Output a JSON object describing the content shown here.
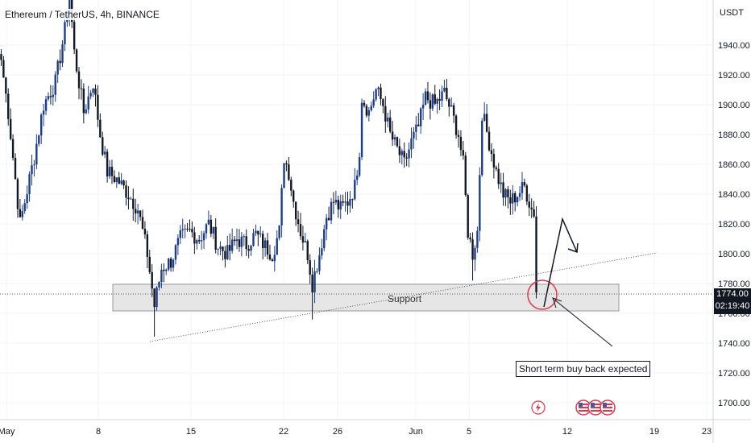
{
  "header": {
    "title": "Ethereum / TetherUS, 4h, BINANCE",
    "currency": "USDT"
  },
  "price_label": {
    "price": "1774.00",
    "countdown": "02:19:40"
  },
  "annotations": {
    "support": "Support",
    "note": "Short term buy back expected"
  },
  "chart_data": {
    "type": "candlestick",
    "title": "Ethereum / TetherUS, 4h, BINANCE",
    "ylabel": "USDT",
    "ylim": [
      1690,
      1970
    ],
    "yticks": [
      1700,
      1720,
      1740,
      1760,
      1780,
      1800,
      1820,
      1840,
      1860,
      1880,
      1900,
      1920,
      1940
    ],
    "ytick_labels": [
      "1700.00",
      "1720.00",
      "1740.00",
      "1760.00",
      "1780.00",
      "1800.00",
      "1820.00",
      "1840.00",
      "1860.00",
      "1880.00",
      "1900.00",
      "1920.00",
      "1940.00"
    ],
    "xtick_labels": [
      "May",
      "8",
      "15",
      "22",
      "26",
      "Jun",
      "5",
      "12",
      "19",
      "23"
    ],
    "current_price": 1774.0,
    "support_zone": [
      1762,
      1780
    ],
    "path_key_points": [
      {
        "i": 0,
        "v": 1930
      },
      {
        "i": 3,
        "v": 1895
      },
      {
        "i": 8,
        "v": 1820
      },
      {
        "i": 14,
        "v": 1865
      },
      {
        "i": 18,
        "v": 1900
      },
      {
        "i": 23,
        "v": 1915
      },
      {
        "i": 27,
        "v": 1950
      },
      {
        "i": 29,
        "v": 1975
      },
      {
        "i": 31,
        "v": 1935
      },
      {
        "i": 35,
        "v": 1895
      },
      {
        "i": 39,
        "v": 1915
      },
      {
        "i": 42,
        "v": 1880
      },
      {
        "i": 45,
        "v": 1855
      },
      {
        "i": 49,
        "v": 1850
      },
      {
        "i": 54,
        "v": 1840
      },
      {
        "i": 58,
        "v": 1830
      },
      {
        "i": 62,
        "v": 1800
      },
      {
        "i": 65,
        "v": 1765
      },
      {
        "i": 68,
        "v": 1790
      },
      {
        "i": 72,
        "v": 1795
      },
      {
        "i": 76,
        "v": 1810
      },
      {
        "i": 80,
        "v": 1815
      },
      {
        "i": 84,
        "v": 1810
      },
      {
        "i": 88,
        "v": 1820
      },
      {
        "i": 92,
        "v": 1805
      },
      {
        "i": 96,
        "v": 1800
      },
      {
        "i": 100,
        "v": 1810
      },
      {
        "i": 104,
        "v": 1806
      },
      {
        "i": 108,
        "v": 1813
      },
      {
        "i": 112,
        "v": 1805
      },
      {
        "i": 115,
        "v": 1800
      },
      {
        "i": 118,
        "v": 1815
      },
      {
        "i": 120,
        "v": 1865
      },
      {
        "i": 122,
        "v": 1855
      },
      {
        "i": 124,
        "v": 1835
      },
      {
        "i": 127,
        "v": 1815
      },
      {
        "i": 130,
        "v": 1800
      },
      {
        "i": 132,
        "v": 1780
      },
      {
        "i": 135,
        "v": 1800
      },
      {
        "i": 138,
        "v": 1825
      },
      {
        "i": 141,
        "v": 1835
      },
      {
        "i": 144,
        "v": 1830
      },
      {
        "i": 147,
        "v": 1835
      },
      {
        "i": 150,
        "v": 1845
      },
      {
        "i": 152,
        "v": 1870
      },
      {
        "i": 153,
        "v": 1905
      },
      {
        "i": 156,
        "v": 1895
      },
      {
        "i": 159,
        "v": 1910
      },
      {
        "i": 162,
        "v": 1900
      },
      {
        "i": 165,
        "v": 1880
      },
      {
        "i": 168,
        "v": 1870
      },
      {
        "i": 171,
        "v": 1860
      },
      {
        "i": 174,
        "v": 1875
      },
      {
        "i": 177,
        "v": 1885
      },
      {
        "i": 180,
        "v": 1905
      },
      {
        "i": 184,
        "v": 1900
      },
      {
        "i": 188,
        "v": 1908
      },
      {
        "i": 191,
        "v": 1895
      },
      {
        "i": 194,
        "v": 1880
      },
      {
        "i": 196,
        "v": 1860
      },
      {
        "i": 198,
        "v": 1815
      },
      {
        "i": 200,
        "v": 1800
      },
      {
        "i": 202,
        "v": 1815
      },
      {
        "i": 204,
        "v": 1895
      },
      {
        "i": 207,
        "v": 1875
      },
      {
        "i": 210,
        "v": 1855
      },
      {
        "i": 213,
        "v": 1840
      },
      {
        "i": 216,
        "v": 1835
      },
      {
        "i": 219,
        "v": 1840
      },
      {
        "i": 222,
        "v": 1845
      },
      {
        "i": 225,
        "v": 1830
      },
      {
        "i": 226,
        "v": 1828
      },
      {
        "i": 227,
        "v": 1774
      }
    ]
  },
  "colors": {
    "up": "#1c3d8c",
    "down": "#131722",
    "grid": "#f0f3fa",
    "trendline": "#555555",
    "support_fill": "#e6e6e6",
    "circle": "#e0344a",
    "event": "#e0344a"
  },
  "icons": {
    "flash_event": "lightning-icon",
    "flag_events": [
      "us-flag-icon",
      "us-flag-icon",
      "us-flag-icon"
    ]
  }
}
